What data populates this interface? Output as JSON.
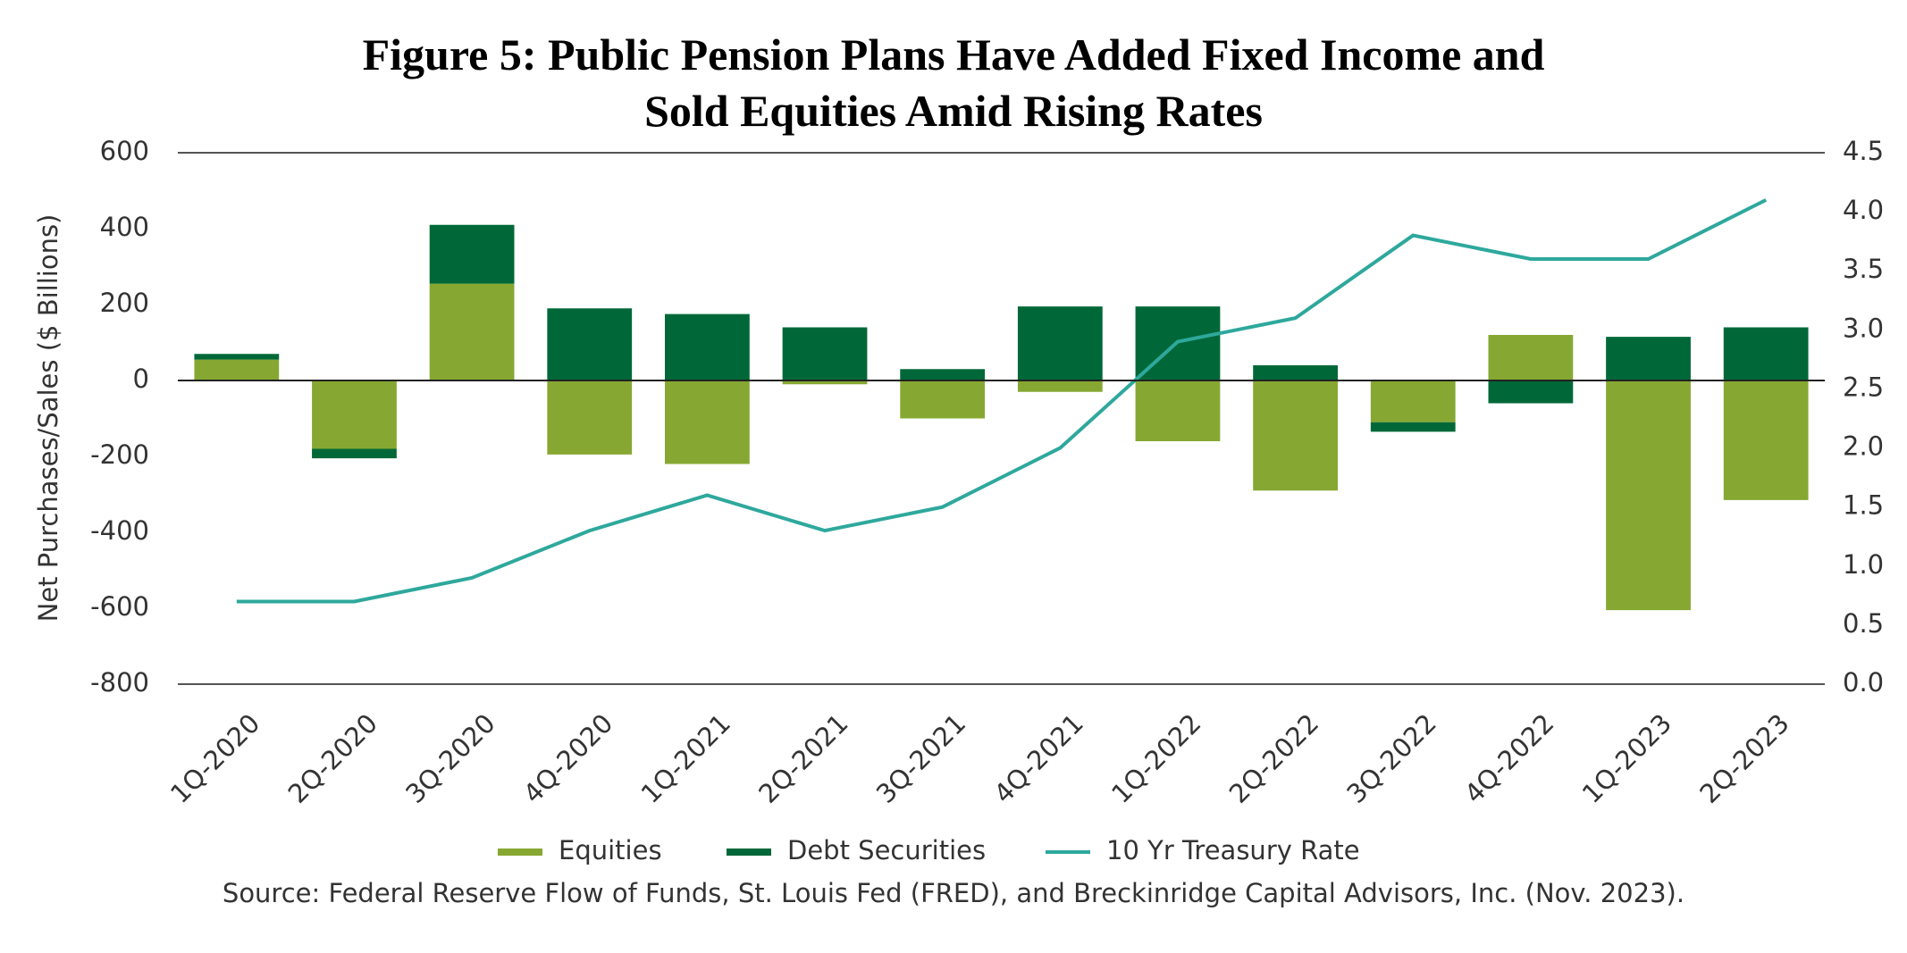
{
  "chart_data": {
    "type": "bar",
    "title": "Figure 5: Public Pension Plans Have Added Fixed Income and Sold Equities Amid Rising Rates",
    "y_label": "Net Purchases/Sales ($ Billions)",
    "source": "Source: Federal Reserve Flow of Funds, St. Louis Fed (FRED), and Breckinridge Capital Advisors, Inc. (Nov. 2023).",
    "stacked": true,
    "categories": [
      "1Q-2020",
      "2Q-2020",
      "3Q-2020",
      "4Q-2020",
      "1Q-2021",
      "2Q-2021",
      "3Q-2021",
      "4Q-2021",
      "1Q-2022",
      "2Q-2022",
      "3Q-2022",
      "4Q-2022",
      "1Q-2023",
      "2Q-2023"
    ],
    "series": [
      {
        "name": "Equities",
        "color": "#86a832",
        "values": [
          55,
          -180,
          255,
          -195,
          -220,
          -10,
          -100,
          -30,
          -160,
          -290,
          -110,
          120,
          -605,
          -315
        ]
      },
      {
        "name": "Debt Securities",
        "color": "#006838",
        "values": [
          15,
          -25,
          155,
          190,
          175,
          140,
          30,
          195,
          195,
          40,
          -25,
          -60,
          115,
          140
        ]
      },
      {
        "name": "10 Yr Treasury Rate",
        "color": "#2ea89c",
        "type": "line",
        "axis": "y2",
        "values": [
          0.7,
          0.7,
          0.9,
          1.3,
          1.6,
          1.3,
          1.5,
          2.0,
          2.9,
          3.1,
          3.8,
          3.6,
          3.6,
          4.1
        ]
      }
    ],
    "ylim": [
      -800,
      600
    ],
    "yticks": [
      600,
      400,
      200,
      0,
      -200,
      -400,
      -600,
      -800
    ],
    "y2lim": [
      0,
      4.5
    ],
    "y2ticks": [
      4.5,
      {
        "value": 4,
        "label": "4.0"
      },
      3.5,
      {
        "value": 3,
        "label": "3.0"
      },
      2.5,
      {
        "value": 2,
        "label": "2.0"
      },
      1.5,
      {
        "value": 1,
        "label": "1.0"
      },
      0.5,
      {
        "value": 0,
        "label": "0.0"
      }
    ],
    "grid": false,
    "legend": "bottom"
  }
}
